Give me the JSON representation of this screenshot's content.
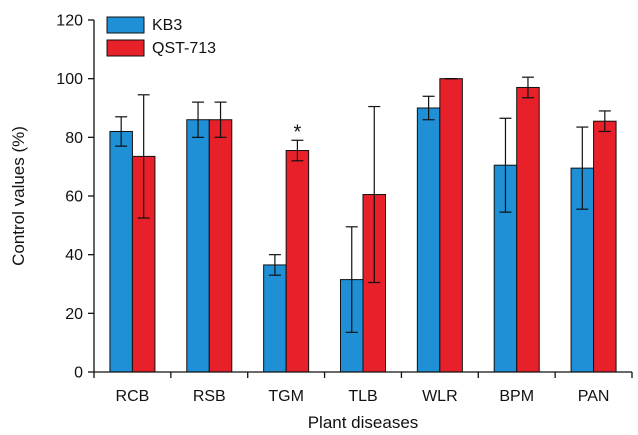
{
  "chart_data": {
    "type": "bar",
    "xlabel": "Plant diseases",
    "ylabel": "Control values (%)",
    "ylim": [
      0,
      120
    ],
    "yticks": [
      0,
      20,
      40,
      60,
      80,
      100,
      120
    ],
    "categories": [
      "RCB",
      "RSB",
      "TGM",
      "TLB",
      "WLR",
      "BPM",
      "PAN"
    ],
    "series": [
      {
        "name": "KB3",
        "color": "#1f8fd6",
        "values": [
          82,
          86,
          36.5,
          31.5,
          90,
          70.5,
          69.5
        ],
        "errors": [
          5,
          6,
          3.5,
          18,
          4,
          16,
          14
        ]
      },
      {
        "name": "QST-713",
        "color": "#e8202a",
        "values": [
          73.5,
          86,
          75.5,
          60.5,
          100,
          97,
          85.5
        ],
        "errors": [
          21,
          6,
          3.5,
          30,
          0,
          3.5,
          3.5
        ]
      }
    ],
    "annotations": [
      {
        "category": "TGM",
        "series": 1,
        "text": "*"
      }
    ],
    "legend_position": "top-left",
    "grid": false
  }
}
